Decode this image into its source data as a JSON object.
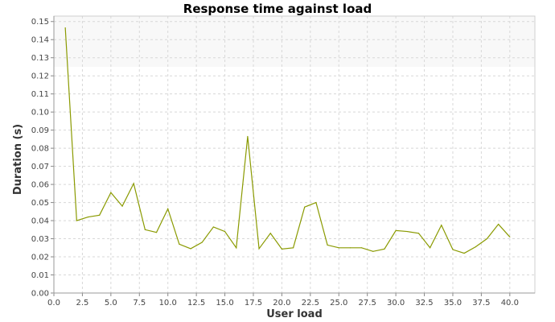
{
  "chart_data": {
    "type": "line",
    "title": "Response time against load",
    "xlabel": "User load",
    "ylabel": "Duration (s)",
    "xlim": [
      0,
      42.2
    ],
    "ylim": [
      0,
      0.153
    ],
    "grid": true,
    "x_ticks": [
      "0.0",
      "2.5",
      "5.0",
      "7.5",
      "10.0",
      "12.5",
      "15.0",
      "17.5",
      "20.0",
      "22.5",
      "25.0",
      "27.5",
      "30.0",
      "32.5",
      "35.0",
      "37.5",
      "40.0"
    ],
    "y_ticks": [
      "0.00",
      "0.01",
      "0.02",
      "0.03",
      "0.04",
      "0.05",
      "0.06",
      "0.07",
      "0.08",
      "0.09",
      "0.10",
      "0.11",
      "0.12",
      "0.13",
      "0.14",
      "0.15"
    ],
    "series": [
      {
        "color": "#8a9a00",
        "x": [
          1,
          2,
          3,
          4,
          5,
          6,
          7,
          8,
          9,
          10,
          11,
          12,
          13,
          14,
          15,
          16,
          17,
          18,
          19,
          20,
          21,
          22,
          23,
          24,
          25,
          26,
          27,
          28,
          29,
          30,
          31,
          32,
          33,
          34,
          35,
          36,
          37,
          38,
          39,
          40
        ],
        "values": [
          0.1465,
          0.04,
          0.042,
          0.043,
          0.0555,
          0.048,
          0.0605,
          0.035,
          0.0335,
          0.0465,
          0.027,
          0.0245,
          0.028,
          0.0365,
          0.034,
          0.025,
          0.0865,
          0.0245,
          0.033,
          0.0243,
          0.025,
          0.0475,
          0.05,
          0.0265,
          0.025,
          0.025,
          0.025,
          0.023,
          0.0243,
          0.0345,
          0.034,
          0.033,
          0.025,
          0.0375,
          0.024,
          0.022,
          0.0255,
          0.03,
          0.038,
          0.031
        ]
      }
    ]
  }
}
